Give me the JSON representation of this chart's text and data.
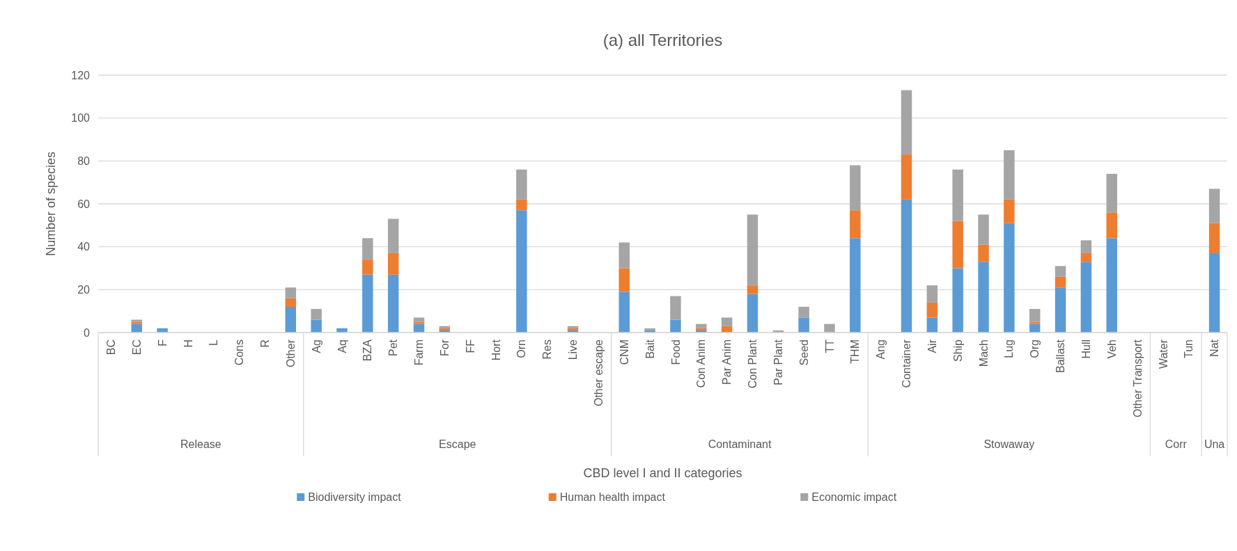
{
  "chart_data": {
    "type": "bar",
    "title": "(a) all Territories",
    "xlabel": "CBD level I and II categories",
    "ylabel": "Number of species",
    "categories": [
      "BC",
      "EC",
      "F",
      "H",
      "L",
      "Cons",
      "R",
      "Other",
      "Ag",
      "Aq",
      "BZA",
      "Pet",
      "Farm",
      "For",
      "FF",
      "Hort",
      "Orn",
      "Res",
      "Live",
      "Other escape",
      "CNM",
      "Bait",
      "Food",
      "Con Anim",
      "Par Anim",
      "Con Plant",
      "Par Plant",
      "Seed",
      "TT",
      "THM",
      "Ang",
      "Container",
      "Air",
      "Ship",
      "Mach",
      "Lug",
      "Org",
      "Ballast",
      "Hull",
      "Veh",
      "Other Transport",
      "Water",
      "Tun",
      "Nat"
    ],
    "series": [
      {
        "name": "Biodiversity impact",
        "color": "#5b9bd5",
        "values": [
          0,
          4,
          2,
          0,
          0,
          0,
          0,
          12,
          6,
          2,
          27,
          27,
          4,
          1,
          0,
          0,
          57,
          0,
          1,
          0,
          19,
          1,
          6,
          1,
          0,
          18,
          0,
          7,
          0,
          44,
          0,
          62,
          7,
          30,
          33,
          51,
          4,
          21,
          33,
          44,
          0,
          0,
          0,
          37
        ]
      },
      {
        "name": "Human health impact",
        "color": "#ed7d31",
        "values": [
          0,
          1,
          0,
          0,
          0,
          0,
          0,
          4,
          0,
          0,
          7,
          10,
          1,
          1,
          0,
          0,
          5,
          0,
          1,
          0,
          11,
          0,
          0,
          1,
          3,
          4,
          0,
          0,
          0,
          13,
          0,
          21,
          7,
          22,
          8,
          11,
          1,
          5,
          4,
          12,
          0,
          0,
          0,
          14
        ]
      },
      {
        "name": "Economic impact",
        "color": "#a5a5a5",
        "values": [
          0,
          1,
          0,
          0,
          0,
          0,
          0,
          5,
          5,
          0,
          10,
          16,
          2,
          1,
          0,
          0,
          14,
          0,
          1,
          0,
          12,
          1,
          11,
          2,
          4,
          33,
          1,
          5,
          4,
          21,
          0,
          30,
          8,
          24,
          14,
          23,
          6,
          5,
          6,
          18,
          0,
          0,
          0,
          16
        ]
      }
    ],
    "stacked": true,
    "ylim": [
      0,
      120
    ],
    "yticks": [
      0,
      20,
      40,
      60,
      80,
      100,
      120
    ],
    "grid": "y",
    "legend": "bottom",
    "annotations": [
      "Release",
      "Escape",
      "Contaminant",
      "Stowaway",
      "Corr",
      "Una"
    ]
  }
}
